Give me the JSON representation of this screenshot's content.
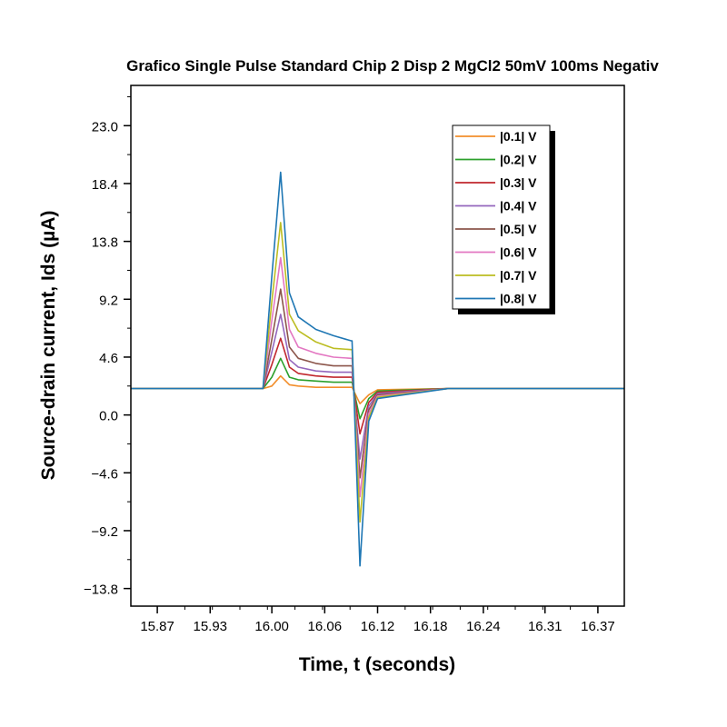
{
  "chart_data": {
    "type": "line",
    "title": "Grafico Single Pulse Standard Chip 2 Disp 2 MgCl2 50mV 100ms Negativ",
    "xlabel": "Time, t (seconds)",
    "ylabel": "Source-drain current, Ids (µA)",
    "xlim": [
      15.84,
      16.4
    ],
    "ylim": [
      -15.2,
      26.2
    ],
    "x_ticks": [
      15.87,
      15.93,
      16.0,
      16.06,
      16.12,
      16.18,
      16.24,
      16.31,
      16.37
    ],
    "x_tick_labels": [
      "15.87",
      "15.93",
      "16.00",
      "16.06",
      "16.12",
      "16.18",
      "16.24",
      "16.31",
      "16.37"
    ],
    "y_ticks": [
      23.0,
      18.4,
      13.8,
      9.2,
      4.6,
      0.0,
      -4.6,
      -9.2,
      -13.8
    ],
    "y_tick_labels": [
      "23.0",
      "18.4",
      "13.8",
      "9.2",
      "4.6",
      "0.0",
      "−4.6",
      "−9.2",
      "−13.8"
    ],
    "grid": false,
    "legend_position": "top-right",
    "x": [
      15.84,
      15.91,
      15.98,
      15.99,
      16.0,
      16.01,
      16.02,
      16.03,
      16.05,
      16.07,
      16.09,
      16.091,
      16.1,
      16.11,
      16.12,
      16.2,
      16.4
    ],
    "series": [
      {
        "name": "|0.1| V",
        "color": "#f28e2b",
        "values": [
          2.1,
          2.1,
          2.1,
          2.1,
          2.3,
          3.1,
          2.4,
          2.3,
          2.2,
          2.2,
          2.2,
          2.2,
          0.9,
          1.6,
          2.0,
          2.1,
          2.1
        ]
      },
      {
        "name": "|0.2| V",
        "color": "#2ca02c",
        "values": [
          2.1,
          2.1,
          2.1,
          2.1,
          3.0,
          4.5,
          3.0,
          2.8,
          2.7,
          2.6,
          2.6,
          2.6,
          -0.3,
          1.3,
          1.9,
          2.1,
          2.1
        ]
      },
      {
        "name": "|0.3| V",
        "color": "#c1272d",
        "values": [
          2.1,
          2.1,
          2.1,
          2.1,
          4.0,
          6.1,
          3.8,
          3.3,
          3.1,
          3.0,
          3.0,
          3.0,
          -1.5,
          1.0,
          1.8,
          2.1,
          2.1
        ]
      },
      {
        "name": "|0.4| V",
        "color": "#9467bd",
        "values": [
          2.1,
          2.1,
          2.1,
          2.1,
          5.0,
          8.0,
          4.4,
          3.8,
          3.5,
          3.4,
          3.4,
          3.4,
          -3.5,
          0.7,
          1.7,
          2.1,
          2.1
        ]
      },
      {
        "name": "|0.5| V",
        "color": "#8c564b",
        "values": [
          2.1,
          2.1,
          2.1,
          2.1,
          6.0,
          10.0,
          5.4,
          4.5,
          4.1,
          3.9,
          3.9,
          3.9,
          -5.0,
          0.4,
          1.6,
          2.1,
          2.1
        ]
      },
      {
        "name": "|0.6| V",
        "color": "#e377c2",
        "values": [
          2.1,
          2.1,
          2.1,
          2.1,
          7.5,
          12.5,
          6.8,
          5.4,
          4.9,
          4.6,
          4.5,
          4.5,
          -6.5,
          0.1,
          1.5,
          2.1,
          2.1
        ]
      },
      {
        "name": "|0.7| V",
        "color": "#bcbd22",
        "values": [
          2.1,
          2.1,
          2.1,
          2.1,
          9.0,
          15.3,
          8.0,
          6.7,
          5.8,
          5.3,
          5.2,
          5.2,
          -8.5,
          -0.2,
          1.4,
          2.1,
          2.1
        ]
      },
      {
        "name": "|0.8| V",
        "color": "#1f77b4",
        "values": [
          2.1,
          2.1,
          2.1,
          2.1,
          11.0,
          19.3,
          9.7,
          7.8,
          6.8,
          6.3,
          5.9,
          5.9,
          -12.0,
          -0.5,
          1.3,
          2.1,
          2.1
        ]
      }
    ]
  }
}
